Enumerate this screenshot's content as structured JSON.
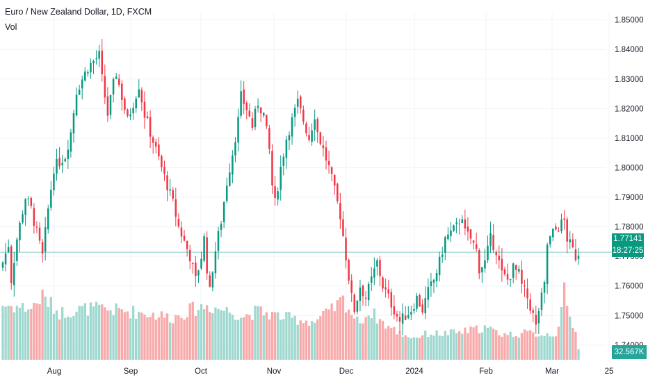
{
  "header": {
    "title": "Euro / New Zealand Dollar, 1D, FXCM",
    "indicator": "Vol"
  },
  "last_price": {
    "value": "1.77141",
    "countdown": "18:27:25"
  },
  "last_volume": {
    "value": "32.567K"
  },
  "colors": {
    "up": "#089981",
    "down": "#f23645",
    "vol_up": "#9fd8cf",
    "vol_down": "#f8aaaa",
    "grid": "#f0f3fa"
  },
  "chart_data": {
    "type": "candlestick",
    "title": "Euro / New Zealand Dollar, 1D, FXCM",
    "ylim": [
      1.7355,
      1.8525
    ],
    "y_ticks": [
      "1.85000",
      "1.84000",
      "1.83000",
      "1.82000",
      "1.81000",
      "1.80000",
      "1.79000",
      "1.78000",
      "1.77000",
      "1.76000",
      "1.75000",
      "1.74000"
    ],
    "x_ticks": [
      "Aug",
      "Sep",
      "Oct",
      "Nov",
      "Dec",
      "2024",
      "Feb",
      "Mar",
      "25"
    ],
    "grid": true,
    "close_path": [
      [
        0,
        1.768
      ],
      [
        2,
        1.774
      ],
      [
        3,
        1.762
      ],
      [
        5,
        1.776
      ],
      [
        8,
        1.79
      ],
      [
        10,
        1.786
      ],
      [
        12,
        1.778
      ],
      [
        14,
        1.77
      ],
      [
        16,
        1.786
      ],
      [
        18,
        1.8
      ],
      [
        20,
        1.802
      ],
      [
        22,
        1.804
      ],
      [
        24,
        1.812
      ],
      [
        26,
        1.826
      ],
      [
        28,
        1.83
      ],
      [
        30,
        1.834
      ],
      [
        32,
        1.836
      ],
      [
        34,
        1.838
      ],
      [
        35,
        1.83
      ],
      [
        37,
        1.818
      ],
      [
        39,
        1.828
      ],
      [
        40,
        1.832
      ],
      [
        42,
        1.824
      ],
      [
        44,
        1.816
      ],
      [
        46,
        1.822
      ],
      [
        48,
        1.828
      ],
      [
        50,
        1.818
      ],
      [
        52,
        1.812
      ],
      [
        54,
        1.806
      ],
      [
        56,
        1.8
      ],
      [
        58,
        1.794
      ],
      [
        60,
        1.788
      ],
      [
        62,
        1.78
      ],
      [
        64,
        1.775
      ],
      [
        66,
        1.77
      ],
      [
        68,
        1.762
      ],
      [
        70,
        1.77
      ],
      [
        71,
        1.776
      ],
      [
        72,
        1.766
      ],
      [
        73,
        1.758
      ],
      [
        74,
        1.766
      ],
      [
        75,
        1.772
      ],
      [
        77,
        1.782
      ],
      [
        79,
        1.795
      ],
      [
        81,
        1.805
      ],
      [
        83,
        1.816
      ],
      [
        84,
        1.824
      ],
      [
        86,
        1.82
      ],
      [
        88,
        1.814
      ],
      [
        90,
        1.822
      ],
      [
        92,
        1.818
      ],
      [
        94,
        1.806
      ],
      [
        95,
        1.794
      ],
      [
        96,
        1.788
      ],
      [
        98,
        1.8
      ],
      [
        100,
        1.81
      ],
      [
        102,
        1.816
      ],
      [
        104,
        1.822
      ],
      [
        106,
        1.816
      ],
      [
        108,
        1.81
      ],
      [
        110,
        1.818
      ],
      [
        111,
        1.812
      ],
      [
        113,
        1.806
      ],
      [
        115,
        1.8
      ],
      [
        117,
        1.792
      ],
      [
        119,
        1.784
      ],
      [
        121,
        1.77
      ],
      [
        123,
        1.756
      ],
      [
        124,
        1.752
      ],
      [
        126,
        1.76
      ],
      [
        128,
        1.756
      ],
      [
        130,
        1.762
      ],
      [
        132,
        1.768
      ],
      [
        134,
        1.76
      ],
      [
        136,
        1.756
      ],
      [
        138,
        1.752
      ],
      [
        140,
        1.748
      ],
      [
        142,
        1.75
      ],
      [
        144,
        1.752
      ],
      [
        146,
        1.756
      ],
      [
        148,
        1.752
      ],
      [
        150,
        1.758
      ],
      [
        152,
        1.762
      ],
      [
        154,
        1.768
      ],
      [
        156,
        1.776
      ],
      [
        158,
        1.778
      ],
      [
        160,
        1.78
      ],
      [
        162,
        1.784
      ],
      [
        163,
        1.778
      ],
      [
        165,
        1.776
      ],
      [
        167,
        1.772
      ],
      [
        168,
        1.766
      ],
      [
        170,
        1.768
      ],
      [
        172,
        1.776
      ],
      [
        174,
        1.772
      ],
      [
        176,
        1.764
      ],
      [
        178,
        1.762
      ],
      [
        180,
        1.766
      ],
      [
        182,
        1.764
      ],
      [
        183,
        1.76
      ],
      [
        185,
        1.756
      ],
      [
        187,
        1.75
      ],
      [
        188,
        1.746
      ],
      [
        189,
        1.752
      ],
      [
        191,
        1.76
      ],
      [
        192,
        1.774
      ],
      [
        194,
        1.778
      ],
      [
        196,
        1.78
      ],
      [
        198,
        1.782
      ],
      [
        199,
        1.776
      ],
      [
        201,
        1.772
      ],
      [
        202,
        1.77
      ],
      [
        203,
        1.7714
      ]
    ],
    "volume_path": [
      [
        0,
        1.68
      ],
      [
        10,
        1.58
      ],
      [
        14,
        1.94
      ],
      [
        20,
        1.44
      ],
      [
        30,
        1.57
      ],
      [
        40,
        1.52
      ],
      [
        50,
        1.44
      ],
      [
        60,
        1.29
      ],
      [
        66,
        1.52
      ],
      [
        72,
        1.66
      ],
      [
        80,
        1.49
      ],
      [
        85,
        1.34
      ],
      [
        90,
        1.49
      ],
      [
        100,
        1.29
      ],
      [
        110,
        1.17
      ],
      [
        116,
        1.51
      ],
      [
        120,
        1.84
      ],
      [
        125,
        1.17
      ],
      [
        130,
        1.45
      ],
      [
        135,
        1.07
      ],
      [
        140,
        0.81
      ],
      [
        145,
        0.68
      ],
      [
        150,
        0.81
      ],
      [
        155,
        0.8
      ],
      [
        160,
        0.83
      ],
      [
        165,
        0.9
      ],
      [
        170,
        0.99
      ],
      [
        175,
        0.81
      ],
      [
        180,
        0.78
      ],
      [
        185,
        0.82
      ],
      [
        190,
        0.78
      ],
      [
        195,
        0.8
      ],
      [
        197,
        1.43
      ],
      [
        198,
        2.08
      ],
      [
        200,
        1.25
      ],
      [
        202,
        0.97
      ],
      [
        203,
        0.32
      ]
    ]
  }
}
